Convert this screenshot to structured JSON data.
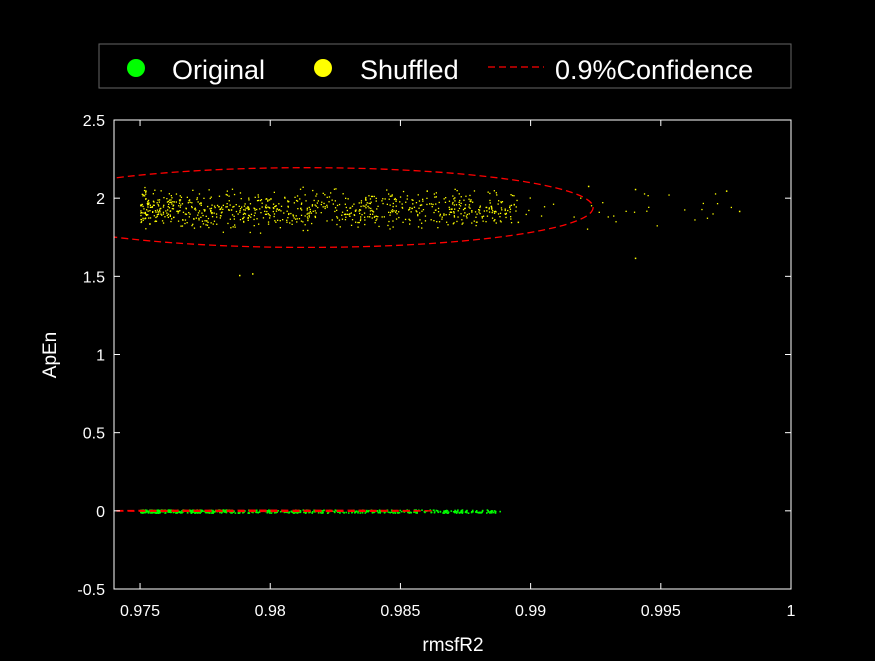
{
  "chart_data": {
    "type": "scatter",
    "title": "",
    "xlabel": "rmsfR2",
    "ylabel": "ApEn",
    "xlim": [
      0.974,
      1.0
    ],
    "ylim": [
      -0.5,
      2.5
    ],
    "xticks": [
      0.975,
      0.98,
      0.985,
      0.99,
      0.995,
      1.0
    ],
    "xtick_labels": [
      "0.975",
      "0.98",
      "0.985",
      "0.99",
      "0.995",
      "1"
    ],
    "yticks": [
      -0.5,
      0,
      0.5,
      1,
      1.5,
      2,
      2.5
    ],
    "ytick_labels": [
      "-0.5",
      "0",
      "0.5",
      "1",
      "1.5",
      "2",
      "2.5"
    ],
    "grid": false,
    "legend_position": "top",
    "legend": [
      {
        "label": "Original",
        "color": "#00ff00",
        "marker": "dot"
      },
      {
        "label": "Shuffled",
        "color": "#ffff00",
        "marker": "dot"
      },
      {
        "label": "0.9%Confidence",
        "color": "#ff0000",
        "marker": "dashed-line"
      }
    ],
    "series": [
      {
        "name": "Original",
        "color": "#00ff00",
        "x_range": [
          0.975,
          0.9888
        ],
        "y_range": [
          -0.01,
          0.01
        ],
        "point_count": 600,
        "points_sample": [
          [
            0.9752,
            0.0
          ],
          [
            0.978,
            0.003
          ],
          [
            0.981,
            -0.004
          ],
          [
            0.984,
            0.002
          ],
          [
            0.9865,
            0.0
          ],
          [
            0.9875,
            0.001
          ],
          [
            0.9888,
            0.0
          ]
        ]
      },
      {
        "name": "Shuffled",
        "color": "#ffff00",
        "x_range": [
          0.975,
          0.998
        ],
        "y_range": [
          1.5,
          2.1
        ],
        "point_count": 900,
        "points_sample": [
          [
            0.9752,
            2.05
          ],
          [
            0.978,
            1.95
          ],
          [
            0.98,
            2.0
          ],
          [
            0.983,
            1.9
          ],
          [
            0.986,
            2.05
          ],
          [
            0.9895,
            1.85
          ],
          [
            0.9922,
            2.08
          ],
          [
            0.994,
            2.06
          ],
          [
            0.9975,
            2.05
          ],
          [
            0.998,
            1.92
          ],
          [
            0.9788,
            1.51
          ],
          [
            0.9793,
            1.52
          ],
          [
            0.994,
            1.62
          ]
        ]
      }
    ],
    "confidence_ellipses": [
      {
        "name": "Shuffled",
        "color": "#ff0000",
        "center": [
          0.9814,
          1.94
        ],
        "semi_axes": [
          0.011,
          0.255
        ]
      },
      {
        "name": "Original",
        "color": "#ff0000",
        "center": [
          0.9799,
          0.0
        ],
        "semi_axes": [
          0.0063,
          0.004
        ]
      }
    ]
  }
}
